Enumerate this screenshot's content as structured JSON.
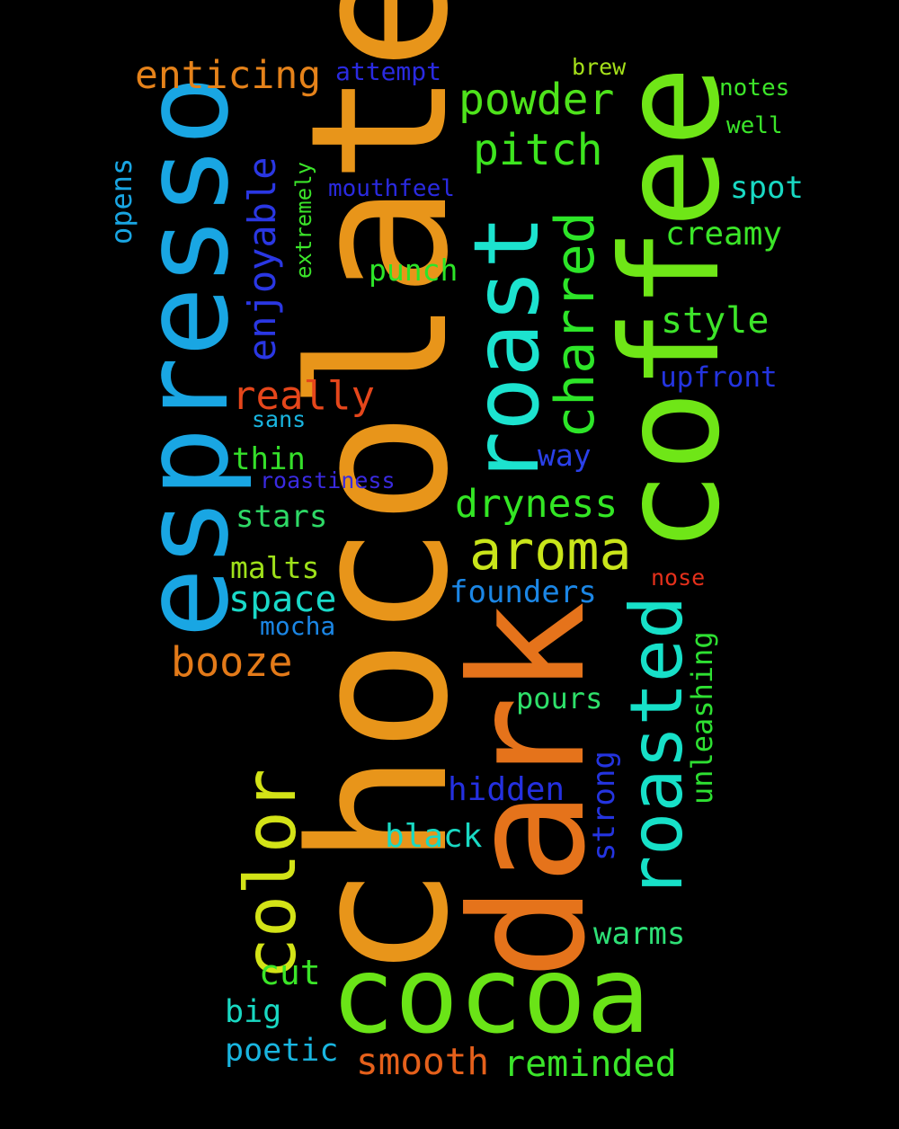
{
  "words": [
    {
      "id": "chocolate",
      "text": "chocolate",
      "color": "#e8951a",
      "orientation": "vertical"
    },
    {
      "id": "dark",
      "text": "dark",
      "color": "#e5731b",
      "orientation": "vertical"
    },
    {
      "id": "coffee",
      "text": "coffee",
      "color": "#6fe617",
      "orientation": "vertical"
    },
    {
      "id": "espresso",
      "text": "espresso",
      "color": "#19a6e3",
      "orientation": "vertical"
    },
    {
      "id": "cocoa",
      "text": "cocoa",
      "color": "#6ae417",
      "orientation": "horizontal"
    },
    {
      "id": "roast",
      "text": "roast",
      "color": "#1ce3cf",
      "orientation": "vertical"
    },
    {
      "id": "roasted",
      "text": "roasted",
      "color": "#17e0c8",
      "orientation": "vertical"
    },
    {
      "id": "color",
      "text": "color",
      "color": "#d3e317",
      "orientation": "vertical"
    },
    {
      "id": "charred",
      "text": "charred",
      "color": "#2de528",
      "orientation": "vertical"
    },
    {
      "id": "aroma",
      "text": "aroma",
      "color": "#c9e51a",
      "orientation": "horizontal"
    },
    {
      "id": "enjoyable",
      "text": "enjoyable",
      "color": "#2a37e3",
      "orientation": "vertical"
    },
    {
      "id": "enticing",
      "text": "enticing",
      "color": "#e5821a",
      "orientation": "horizontal"
    },
    {
      "id": "powder",
      "text": "powder",
      "color": "#4ee31b",
      "orientation": "horizontal"
    },
    {
      "id": "pitch",
      "text": "pitch",
      "color": "#3de51f",
      "orientation": "horizontal"
    },
    {
      "id": "dryness",
      "text": "dryness",
      "color": "#33e624",
      "orientation": "horizontal"
    },
    {
      "id": "really",
      "text": "really",
      "color": "#e5461b",
      "orientation": "horizontal"
    },
    {
      "id": "booze",
      "text": "booze",
      "color": "#e37a19",
      "orientation": "horizontal"
    },
    {
      "id": "style",
      "text": "style",
      "color": "#3de52a",
      "orientation": "horizontal"
    },
    {
      "id": "space",
      "text": "space",
      "color": "#1ad9c8",
      "orientation": "horizontal"
    },
    {
      "id": "founders",
      "text": "founders",
      "color": "#1b86e5",
      "orientation": "horizontal"
    },
    {
      "id": "creamy",
      "text": "creamy",
      "color": "#3be528",
      "orientation": "horizontal"
    },
    {
      "id": "spot",
      "text": "spot",
      "color": "#19d9c3",
      "orientation": "horizontal"
    },
    {
      "id": "punch",
      "text": "punch",
      "color": "#2de528",
      "orientation": "horizontal"
    },
    {
      "id": "upfront",
      "text": "upfront",
      "color": "#2434e0",
      "orientation": "horizontal"
    },
    {
      "id": "way",
      "text": "way",
      "color": "#2a40e8",
      "orientation": "horizontal"
    },
    {
      "id": "thin",
      "text": "thin",
      "color": "#35e02a",
      "orientation": "horizontal"
    },
    {
      "id": "stars",
      "text": "stars",
      "color": "#2ed966",
      "orientation": "horizontal"
    },
    {
      "id": "malts",
      "text": "malts",
      "color": "#9ee01a",
      "orientation": "horizontal"
    },
    {
      "id": "hidden",
      "text": "hidden",
      "color": "#2430e0",
      "orientation": "horizontal"
    },
    {
      "id": "black",
      "text": "black",
      "color": "#19d9c3",
      "orientation": "horizontal"
    },
    {
      "id": "pours",
      "text": "pours",
      "color": "#2ee06a",
      "orientation": "horizontal"
    },
    {
      "id": "warms",
      "text": "warms",
      "color": "#2ee076",
      "orientation": "horizontal"
    },
    {
      "id": "cut",
      "text": "cut",
      "color": "#3be528",
      "orientation": "horizontal"
    },
    {
      "id": "big",
      "text": "big",
      "color": "#19d9c3",
      "orientation": "horizontal"
    },
    {
      "id": "poetic",
      "text": "poetic",
      "color": "#19b5e0",
      "orientation": "horizontal"
    },
    {
      "id": "smooth",
      "text": "smooth",
      "color": "#e5601b",
      "orientation": "horizontal"
    },
    {
      "id": "reminded",
      "text": "reminded",
      "color": "#3be52a",
      "orientation": "horizontal"
    },
    {
      "id": "strong",
      "text": "strong",
      "color": "#2434e0",
      "orientation": "vertical"
    },
    {
      "id": "unleashing",
      "text": "unleashing",
      "color": "#2ee032",
      "orientation": "vertical"
    },
    {
      "id": "opens",
      "text": "opens",
      "color": "#19a6e3",
      "orientation": "vertical"
    },
    {
      "id": "extremely",
      "text": "extremely",
      "color": "#3be52a",
      "orientation": "vertical"
    },
    {
      "id": "mouthfeel",
      "text": "mouthfeel",
      "color": "#2a2ae0",
      "orientation": "horizontal"
    },
    {
      "id": "attempt",
      "text": "attempt",
      "color": "#2a2ae0",
      "orientation": "horizontal"
    },
    {
      "id": "brew",
      "text": "brew",
      "color": "#a5e01a",
      "orientation": "horizontal"
    },
    {
      "id": "notes",
      "text": "notes",
      "color": "#3de52a",
      "orientation": "horizontal"
    },
    {
      "id": "well",
      "text": "well",
      "color": "#3be52a",
      "orientation": "horizontal"
    },
    {
      "id": "sans",
      "text": "sans",
      "color": "#19b5e0",
      "orientation": "horizontal"
    },
    {
      "id": "roastiness",
      "text": "roastiness",
      "color": "#3a2ae0",
      "orientation": "horizontal"
    },
    {
      "id": "mocha",
      "text": "mocha",
      "color": "#1b86e5",
      "orientation": "horizontal"
    },
    {
      "id": "nose",
      "text": "nose",
      "color": "#e5301b",
      "orientation": "horizontal"
    }
  ]
}
